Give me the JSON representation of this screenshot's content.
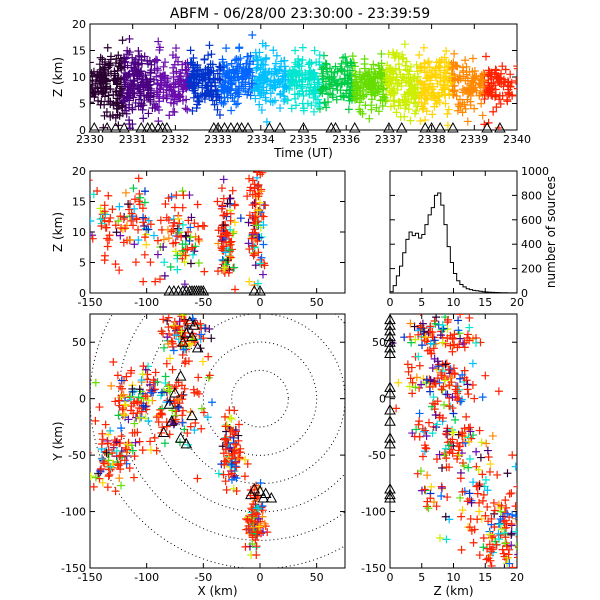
{
  "title": "ABFM - 06/28/00 23:30:00 - 23:39:59",
  "chart_data": [
    {
      "panel": "time-altitude",
      "type": "scatter",
      "xlabel": "Time (UT)",
      "ylabel": "Z (km)",
      "xlim": [
        2330,
        2340
      ],
      "ylim": [
        0,
        20
      ],
      "xticks": [
        "2330",
        "2331",
        "2332",
        "2333",
        "2334",
        "2335",
        "2336",
        "2337",
        "2338",
        "2339",
        "2340"
      ],
      "yticks": [
        "0",
        "5",
        "10",
        "15",
        "20"
      ],
      "marker": "+",
      "color_by": "time (purple to red)",
      "clusters": [
        {
          "x": 2330.3,
          "y": 9,
          "spread": [
            0.25,
            3
          ]
        },
        {
          "x": 2330.9,
          "y": 8,
          "spread": [
            0.25,
            3
          ]
        },
        {
          "x": 2331.5,
          "y": 9,
          "spread": [
            0.3,
            3
          ]
        },
        {
          "x": 2332.3,
          "y": 9,
          "spread": [
            0.3,
            2.5
          ]
        },
        {
          "x": 2333.0,
          "y": 9,
          "spread": [
            0.35,
            2.5
          ]
        },
        {
          "x": 2333.8,
          "y": 10,
          "spread": [
            0.35,
            2.5
          ]
        },
        {
          "x": 2334.6,
          "y": 9,
          "spread": [
            0.35,
            2.5
          ]
        },
        {
          "x": 2335.4,
          "y": 9,
          "spread": [
            0.35,
            2.5
          ]
        },
        {
          "x": 2336.3,
          "y": 9,
          "spread": [
            0.3,
            2.5
          ]
        },
        {
          "x": 2337.0,
          "y": 9,
          "spread": [
            0.3,
            2.5
          ]
        },
        {
          "x": 2337.7,
          "y": 8,
          "spread": [
            0.3,
            2.5
          ]
        },
        {
          "x": 2338.5,
          "y": 9,
          "spread": [
            0.3,
            2.5
          ]
        },
        {
          "x": 2339.4,
          "y": 8,
          "spread": [
            0.3,
            2.5
          ]
        }
      ],
      "triangles_x": [
        2330.1,
        2330.4,
        2330.6,
        2330.8,
        2331.2,
        2331.35,
        2331.45,
        2331.6,
        2331.7,
        2331.8,
        2332.9,
        2333.0,
        2333.15,
        2333.3,
        2333.45,
        2333.55,
        2333.7,
        2334.2,
        2334.45,
        2335.0,
        2335.65,
        2335.75,
        2336.2,
        2337.0,
        2337.3,
        2337.85,
        2338.0,
        2338.2,
        2338.5,
        2339.3,
        2339.6
      ]
    },
    {
      "panel": "x-altitude",
      "type": "scatter",
      "xlabel": "",
      "ylabel": "Z (km)",
      "xlim": [
        -150,
        75
      ],
      "ylim": [
        0,
        20
      ],
      "xticks": [
        "-150",
        "-100",
        "-50",
        "0",
        "50"
      ],
      "yticks": [
        "0",
        "5",
        "10",
        "15",
        "20"
      ],
      "marker": "+",
      "clusters": [
        {
          "x": -120,
          "y": 11,
          "spread": [
            18,
            3
          ]
        },
        {
          "x": -72,
          "y": 9,
          "spread": [
            12,
            4
          ]
        },
        {
          "x": -30,
          "y": 9,
          "spread": [
            4,
            4
          ]
        },
        {
          "x": -3,
          "y": 12,
          "spread": [
            4,
            5
          ]
        }
      ],
      "triangles_x": [
        -80,
        -76,
        -72,
        -68,
        -65,
        -62,
        -60,
        -58,
        -56,
        -54,
        -52,
        -50,
        -5,
        0
      ]
    },
    {
      "panel": "altitude-histogram",
      "type": "line",
      "xlabel": "",
      "ylabel": "number of sources",
      "ylabel_side": "right",
      "xlim": [
        0,
        20
      ],
      "ylim": [
        0,
        1000
      ],
      "xticks": [
        "0",
        "5",
        "10",
        "15",
        "20"
      ],
      "yticks": [
        "0",
        "200",
        "400",
        "600",
        "800",
        "1000"
      ],
      "x": [
        0.5,
        1,
        1.5,
        2,
        2.5,
        3,
        3.5,
        4,
        4.5,
        5,
        5.5,
        6,
        6.5,
        7,
        7.5,
        8,
        8.5,
        9,
        9.5,
        10,
        10.5,
        11,
        11.5,
        12,
        12.5,
        13,
        13.5,
        14,
        14.5,
        15,
        15.5,
        16,
        16.5,
        17,
        17.5,
        18,
        18.5,
        19,
        19.5,
        20
      ],
      "y": [
        10,
        60,
        140,
        220,
        330,
        440,
        500,
        470,
        490,
        450,
        480,
        560,
        640,
        700,
        800,
        820,
        720,
        560,
        380,
        250,
        160,
        100,
        70,
        50,
        35,
        28,
        22,
        18,
        14,
        10,
        8,
        6,
        5,
        4,
        3,
        2,
        2,
        1,
        1,
        1
      ]
    },
    {
      "panel": "plan-view",
      "type": "scatter",
      "xlabel": "X (km)",
      "ylabel": "Y (km)",
      "xlim": [
        -150,
        75
      ],
      "ylim": [
        -150,
        75
      ],
      "xticks": [
        "-150",
        "-100",
        "-50",
        "0",
        "50"
      ],
      "yticks": [
        "-150",
        "-100",
        "-50",
        "0",
        "50"
      ],
      "marker": "+",
      "range_rings_km": [
        25,
        50,
        75,
        100,
        125,
        150
      ],
      "clusters": [
        {
          "x": -65,
          "y": 57,
          "spread": [
            10,
            10
          ]
        },
        {
          "x": -110,
          "y": 5,
          "spread": [
            15,
            15
          ]
        },
        {
          "x": -75,
          "y": -10,
          "spread": [
            15,
            20
          ]
        },
        {
          "x": -130,
          "y": -50,
          "spread": [
            12,
            15
          ]
        },
        {
          "x": -25,
          "y": -50,
          "spread": [
            5,
            15
          ]
        },
        {
          "x": -5,
          "y": -110,
          "spread": [
            4,
            15
          ]
        }
      ],
      "triangles": [
        [
          -62,
          68
        ],
        [
          -58,
          65
        ],
        [
          -65,
          58
        ],
        [
          -60,
          55
        ],
        [
          -68,
          50
        ],
        [
          -55,
          45
        ],
        [
          -70,
          20
        ],
        [
          -75,
          5
        ],
        [
          -80,
          -5
        ],
        [
          -78,
          -20
        ],
        [
          -85,
          -30
        ],
        [
          -70,
          -35
        ],
        [
          -65,
          -40
        ],
        [
          -60,
          -15
        ],
        [
          -5,
          -80
        ],
        [
          0,
          -82
        ],
        [
          5,
          -84
        ],
        [
          -8,
          -85
        ],
        [
          3,
          -88
        ],
        [
          10,
          -88
        ]
      ]
    },
    {
      "panel": "altitude-y",
      "type": "scatter",
      "xlabel": "Z (km)",
      "ylabel": "",
      "xlim": [
        0,
        20
      ],
      "ylim": [
        -150,
        75
      ],
      "xticks": [
        "0",
        "5",
        "10",
        "15",
        "20"
      ],
      "yticks": [
        "-150",
        "-100",
        "-50",
        "0",
        "50"
      ],
      "marker": "+",
      "clusters": [
        {
          "x": 8,
          "y": 57,
          "spread": [
            3,
            8
          ]
        },
        {
          "x": 9,
          "y": 15,
          "spread": [
            3,
            10
          ]
        },
        {
          "x": 9,
          "y": -30,
          "spread": [
            3,
            15
          ]
        },
        {
          "x": 12,
          "y": -80,
          "spread": [
            4,
            20
          ]
        },
        {
          "x": 17,
          "y": -120,
          "spread": [
            2,
            15
          ]
        }
      ],
      "triangles": [
        [
          0,
          70
        ],
        [
          0,
          65
        ],
        [
          0,
          60
        ],
        [
          0,
          55
        ],
        [
          0,
          50
        ],
        [
          0,
          45
        ],
        [
          0,
          40
        ],
        [
          0,
          10
        ],
        [
          0,
          5
        ],
        [
          0,
          -10
        ],
        [
          0,
          -20
        ],
        [
          0,
          -35
        ],
        [
          0,
          -40
        ],
        [
          0,
          -80
        ],
        [
          0,
          -85
        ],
        [
          0,
          -88
        ]
      ]
    }
  ]
}
